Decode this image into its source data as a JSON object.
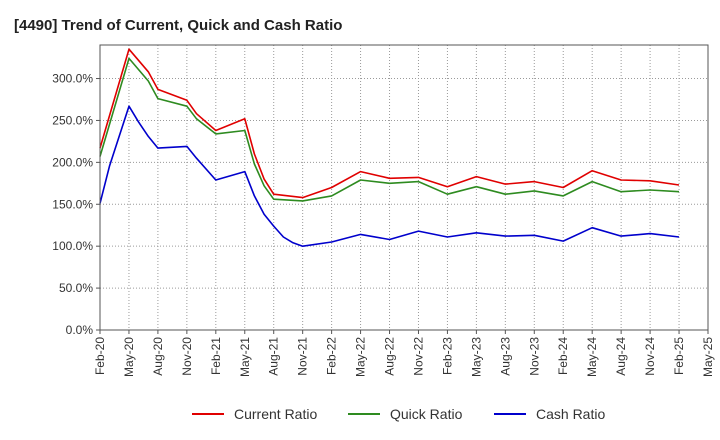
{
  "chart_data": {
    "type": "line",
    "title": "[4490]  Trend of Current, Quick and Cash Ratio",
    "xlabel": "",
    "ylabel": "",
    "ylim": [
      0,
      340
    ],
    "yticks": [
      0,
      50,
      100,
      150,
      200,
      250,
      300
    ],
    "ytick_labels": [
      "0.0%",
      "50.0%",
      "100.0%",
      "150.0%",
      "200.0%",
      "250.0%",
      "300.0%"
    ],
    "xtick_labels": [
      "Feb-20",
      "May-20",
      "Aug-20",
      "Nov-20",
      "Feb-21",
      "May-21",
      "Aug-21",
      "Nov-21",
      "Feb-22",
      "May-22",
      "Aug-22",
      "Nov-22",
      "Feb-23",
      "May-23",
      "Aug-23",
      "Nov-23",
      "Feb-24",
      "May-24",
      "Aug-24",
      "Nov-24",
      "Feb-25",
      "May-25"
    ],
    "grid": true,
    "legend_position": "bottom",
    "series": [
      {
        "name": "Current Ratio",
        "color": "#e00000",
        "points": [
          [
            0,
            217
          ],
          [
            1,
            335
          ],
          [
            1.6667,
            308
          ],
          [
            2,
            287
          ],
          [
            3,
            274
          ],
          [
            3.3333,
            258
          ],
          [
            4,
            238
          ],
          [
            5,
            252
          ],
          [
            5.3333,
            210
          ],
          [
            5.6667,
            180
          ],
          [
            6,
            162
          ],
          [
            7,
            158
          ],
          [
            8,
            170
          ],
          [
            9,
            189
          ],
          [
            10,
            181
          ],
          [
            11,
            182
          ],
          [
            12,
            171
          ],
          [
            13,
            183
          ],
          [
            14,
            174
          ],
          [
            15,
            177
          ],
          [
            16,
            170
          ],
          [
            17,
            190
          ],
          [
            18,
            179
          ],
          [
            19,
            178
          ],
          [
            20,
            173
          ]
        ]
      },
      {
        "name": "Quick Ratio",
        "color": "#2e8b20",
        "points": [
          [
            0,
            207
          ],
          [
            1,
            324
          ],
          [
            1.6667,
            297
          ],
          [
            2,
            276
          ],
          [
            3,
            267
          ],
          [
            3.3333,
            252
          ],
          [
            4,
            234
          ],
          [
            5,
            238
          ],
          [
            5.3333,
            198
          ],
          [
            5.6667,
            172
          ],
          [
            6,
            156
          ],
          [
            7,
            154
          ],
          [
            8,
            160
          ],
          [
            9,
            179
          ],
          [
            10,
            175
          ],
          [
            11,
            177
          ],
          [
            12,
            162
          ],
          [
            13,
            171
          ],
          [
            14,
            162
          ],
          [
            15,
            166
          ],
          [
            16,
            160
          ],
          [
            17,
            177
          ],
          [
            18,
            165
          ],
          [
            19,
            167
          ],
          [
            20,
            165
          ]
        ]
      },
      {
        "name": "Cash Ratio",
        "color": "#0000cc",
        "points": [
          [
            0,
            151
          ],
          [
            0.3333,
            196
          ],
          [
            1,
            267
          ],
          [
            1.3333,
            248
          ],
          [
            1.6667,
            231
          ],
          [
            2,
            217
          ],
          [
            3,
            219
          ],
          [
            3.3333,
            205
          ],
          [
            4,
            179
          ],
          [
            5,
            189
          ],
          [
            5.3333,
            160
          ],
          [
            5.6667,
            138
          ],
          [
            6,
            124
          ],
          [
            6.3333,
            111
          ],
          [
            6.6667,
            104
          ],
          [
            7,
            100
          ],
          [
            8,
            105
          ],
          [
            9,
            114
          ],
          [
            10,
            108
          ],
          [
            11,
            118
          ],
          [
            12,
            111
          ],
          [
            13,
            116
          ],
          [
            14,
            112
          ],
          [
            15,
            113
          ],
          [
            16,
            106
          ],
          [
            17,
            122
          ],
          [
            18,
            112
          ],
          [
            19,
            115
          ],
          [
            20,
            111
          ]
        ]
      }
    ]
  }
}
